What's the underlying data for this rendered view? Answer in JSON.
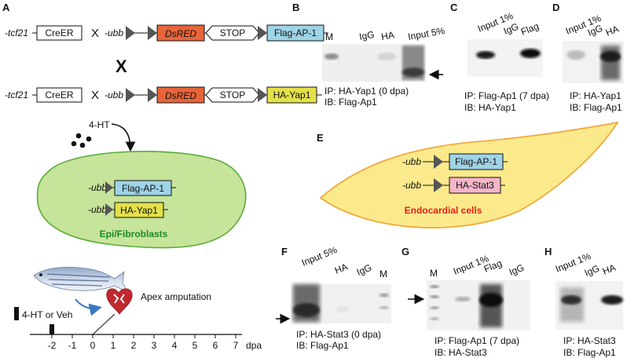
{
  "colors": {
    "dsred": "#e8643a",
    "flag": "#9fd3e6",
    "ha_yap": "#e3e04a",
    "ha_stat": "#f4b6c8",
    "fibro_fill": "#c6e49a",
    "fibro_stroke": "#5cab3c",
    "endo_fill": "#fbea8c",
    "endo_stroke": "#f2a93b",
    "endo_label": "#e0201b",
    "epi_label": "#1e8a2e",
    "arrow_blue": "#3a78c2",
    "heart": "#c0282d"
  },
  "panels": {
    "A": "A",
    "B": "B",
    "C": "C",
    "D": "D",
    "E": "E",
    "F": "F",
    "G": "G",
    "H": "H"
  },
  "constructs": {
    "tcf21": "-tcf21",
    "creer": "CreER",
    "cross": "X",
    "ubb": "-ubb",
    "dsred": "DsRED",
    "stop": "STOP",
    "flag_ap1": "Flag-AP-1",
    "ha_yap1": "HA-Yap1",
    "ha_stat3": "HA-Stat3",
    "big_cross": "X"
  },
  "treatment": {
    "tamoxifen": "4-HT"
  },
  "cells": {
    "fibro": "Epi/Fibroblasts",
    "endo": "Endocardial cells"
  },
  "timeline": {
    "apex": "Apex amputation",
    "treatment_label": "4-HT or Veh",
    "ticks": [
      "-2",
      "-1",
      "0",
      "1",
      "2",
      "3",
      "4",
      "5",
      "6",
      "7"
    ],
    "unit": "dpa"
  },
  "blots": {
    "B": {
      "lanes": [
        "M",
        "IgG",
        "HA",
        "Input 5%"
      ],
      "ip": "IP: HA-Yap1 (0 dpa)",
      "ib": "IB: Flag-Ap1"
    },
    "C": {
      "lanes": [
        "Input 1%",
        "IgG",
        "Flag"
      ],
      "ip": "IP: Flag-Ap1 (7 dpa)",
      "ib": "IB: HA-Yap1"
    },
    "D": {
      "lanes": [
        "Input 1%",
        "IgG",
        "HA"
      ],
      "ip": "IP: HA-Yap1",
      "ib": "IB: Flag-Ap1"
    },
    "F": {
      "lanes": [
        "Input 5%",
        "HA",
        "IgG",
        "M"
      ],
      "ip": "IP: HA-Stat3 (0 dpa)",
      "ib": "IB: Flag-Ap1"
    },
    "G": {
      "lanes": [
        "M",
        "Input 1%",
        "Flag",
        "IgG"
      ],
      "ip": "IP: Flag-Ap1 (7 dpa)",
      "ib": "IB: HA-Stat3"
    },
    "H": {
      "lanes": [
        "Input 1%",
        "IgG",
        "HA"
      ],
      "ip": "IP: HA-Stat3",
      "ib": "IB: Flag-Ap1"
    }
  }
}
